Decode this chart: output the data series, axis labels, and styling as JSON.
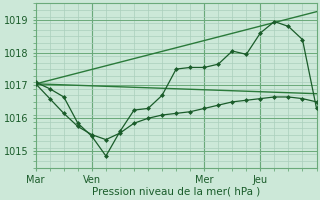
{
  "xlabel": "Pression niveau de la mer( hPa )",
  "bg_color": "#cce8d8",
  "grid_color": "#aacfbc",
  "line_color_dark": "#1a5c2a",
  "line_color_mid": "#2a7a3a",
  "xlim": [
    0,
    120
  ],
  "ylim": [
    1014.5,
    1019.5
  ],
  "yticks": [
    1015,
    1016,
    1017,
    1018,
    1019
  ],
  "xtick_positions": [
    0,
    24,
    72,
    96
  ],
  "xtick_labels": [
    "Mar",
    "Ven",
    "Mer",
    "Jeu"
  ],
  "vline_positions": [
    24,
    72,
    96
  ],
  "series1_x": [
    0,
    6,
    12,
    18,
    24,
    30,
    36,
    42,
    48,
    54,
    60,
    66,
    72,
    78,
    84,
    90,
    96,
    102,
    108,
    114,
    120
  ],
  "series1_y": [
    1017.1,
    1016.9,
    1016.65,
    1015.85,
    1015.45,
    1014.85,
    1015.6,
    1016.25,
    1016.3,
    1016.7,
    1017.5,
    1017.55,
    1017.55,
    1017.65,
    1018.05,
    1017.95,
    1018.6,
    1018.95,
    1018.8,
    1018.4,
    1016.3
  ],
  "series2_x": [
    0,
    6,
    12,
    18,
    24,
    30,
    36,
    42,
    48,
    54,
    60,
    66,
    72,
    78,
    84,
    90,
    96,
    102,
    108,
    114,
    120
  ],
  "series2_y": [
    1017.05,
    1016.6,
    1016.15,
    1015.75,
    1015.5,
    1015.35,
    1015.55,
    1015.85,
    1016.0,
    1016.1,
    1016.15,
    1016.2,
    1016.3,
    1016.4,
    1016.5,
    1016.55,
    1016.6,
    1016.65,
    1016.65,
    1016.6,
    1016.5
  ],
  "trend1_x": [
    0,
    120
  ],
  "trend1_y": [
    1017.05,
    1019.25
  ],
  "trend2_x": [
    0,
    120
  ],
  "trend2_y": [
    1017.05,
    1016.75
  ]
}
